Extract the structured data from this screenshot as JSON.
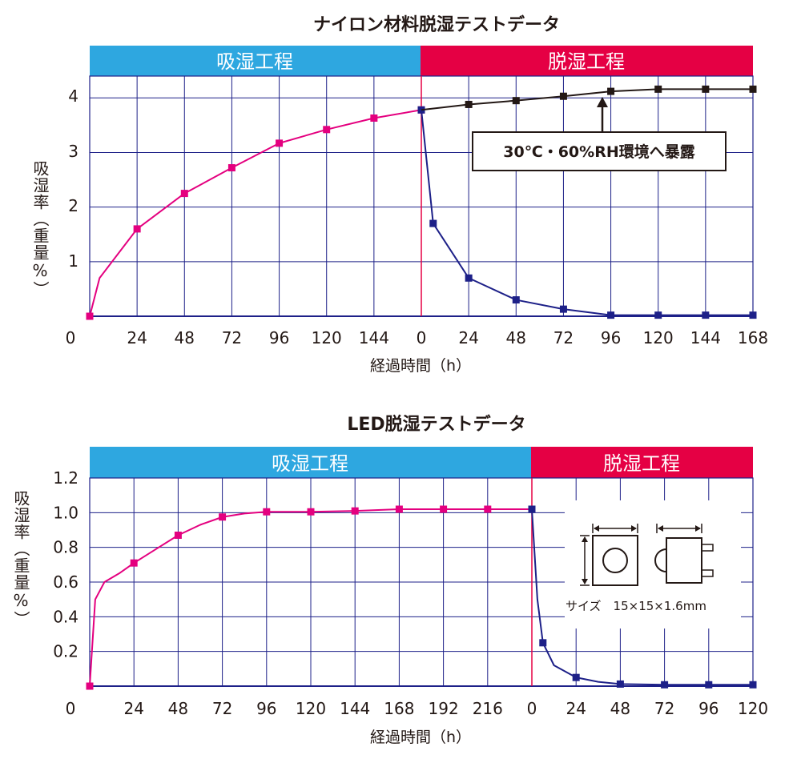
{
  "colors": {
    "absorb_band": "#2ea7e0",
    "dry_band": "#e50044",
    "absorb_series": "#e4007f",
    "dry_series": "#1d2088",
    "exposure_series": "#231815",
    "grid": "#1d2088"
  },
  "chart_data": [
    {
      "type": "line",
      "title": "ナイロン材料脱湿テストデータ",
      "xlabel": "経過時間（h）",
      "ylabel": "吸湿率（重量%）",
      "ylim": [
        0,
        4.4
      ],
      "yticks": [
        "1",
        "2",
        "3",
        "4"
      ],
      "zero_label": "0",
      "phases": [
        {
          "label": "吸湿工程",
          "x_range": [
            0,
            168
          ]
        },
        {
          "label": "脱湿工程",
          "x_range": [
            168,
            336
          ]
        }
      ],
      "xtick_labels": [
        "24",
        "48",
        "72",
        "96",
        "120",
        "144",
        "0",
        "24",
        "48",
        "72",
        "96",
        "120",
        "144",
        "168"
      ],
      "series": [
        {
          "name": "吸湿",
          "color_key": "absorb_series",
          "x": [
            0,
            5,
            24,
            48,
            72,
            96,
            120,
            144,
            168
          ],
          "values": [
            0,
            0.7,
            1.6,
            2.25,
            2.72,
            3.17,
            3.42,
            3.63,
            3.78
          ],
          "markers_x": [
            0,
            24,
            48,
            72,
            96,
            120,
            144,
            168
          ],
          "markers_y": [
            0,
            1.6,
            2.25,
            2.72,
            3.17,
            3.42,
            3.63,
            3.78
          ]
        },
        {
          "name": "脱湿",
          "color_key": "dry_series",
          "x": [
            168,
            174,
            192,
            216,
            240,
            264,
            288,
            312,
            336
          ],
          "values": [
            3.78,
            1.7,
            0.7,
            0.3,
            0.13,
            0.02,
            0.02,
            0.02,
            0.02
          ],
          "markers_x": [
            168,
            174,
            192,
            216,
            240,
            264,
            288,
            312,
            336
          ],
          "markers_y": [
            3.78,
            1.7,
            0.7,
            0.3,
            0.13,
            0.02,
            0.02,
            0.02,
            0.02
          ]
        },
        {
          "name": "暴露",
          "color_key": "exposure_series",
          "x": [
            168,
            192,
            216,
            240,
            264,
            288,
            312,
            336
          ],
          "values": [
            3.78,
            3.88,
            3.95,
            4.03,
            4.12,
            4.16,
            4.16,
            4.16
          ],
          "markers_x": [
            192,
            216,
            240,
            264,
            288,
            312,
            336
          ],
          "markers_y": [
            3.88,
            3.95,
            4.03,
            4.12,
            4.16,
            4.16,
            4.16
          ]
        }
      ],
      "annotation": "30℃・60%RH環境へ暴露"
    },
    {
      "type": "line",
      "title": "LED脱湿テストデータ",
      "xlabel": "経過時間（h）",
      "ylabel": "吸湿率（重量%）",
      "ylim": [
        0,
        1.2
      ],
      "yticks": [
        "0.2",
        "0.4",
        "0.6",
        "0.8",
        "1.0",
        "1.2"
      ],
      "zero_label": "0",
      "phases": [
        {
          "label": "吸湿工程",
          "x_range": [
            0,
            240
          ]
        },
        {
          "label": "脱湿工程",
          "x_range": [
            240,
            360
          ]
        }
      ],
      "xtick_labels": [
        "24",
        "48",
        "72",
        "96",
        "120",
        "144",
        "168",
        "192",
        "216",
        "0",
        "24",
        "48",
        "72",
        "96",
        "120"
      ],
      "series": [
        {
          "name": "吸湿",
          "color_key": "absorb_series",
          "x": [
            0,
            3,
            8,
            16,
            24,
            36,
            48,
            60,
            72,
            84,
            96,
            120,
            144,
            168,
            192,
            216,
            240
          ],
          "values": [
            0,
            0.5,
            0.6,
            0.65,
            0.71,
            0.79,
            0.87,
            0.93,
            0.975,
            0.995,
            1.005,
            1.005,
            1.01,
            1.02,
            1.02,
            1.02,
            1.02
          ],
          "markers_x": [
            0,
            24,
            48,
            72,
            96,
            120,
            144,
            168,
            192,
            216,
            240
          ],
          "markers_y": [
            0,
            0.71,
            0.87,
            0.975,
            1.005,
            1.005,
            1.01,
            1.02,
            1.02,
            1.02,
            1.02
          ]
        },
        {
          "name": "脱湿",
          "color_key": "dry_series",
          "x": [
            240,
            243,
            246,
            252,
            264,
            276,
            288,
            312,
            336,
            360
          ],
          "values": [
            1.02,
            0.5,
            0.25,
            0.12,
            0.05,
            0.025,
            0.012,
            0.008,
            0.008,
            0.008
          ],
          "markers_x": [
            240,
            246,
            264,
            288,
            312,
            336,
            360
          ],
          "markers_y": [
            1.02,
            0.25,
            0.05,
            0.012,
            0.008,
            0.008,
            0.008
          ]
        }
      ],
      "inset_caption": "サイズ　15×15×1.6mm"
    }
  ]
}
